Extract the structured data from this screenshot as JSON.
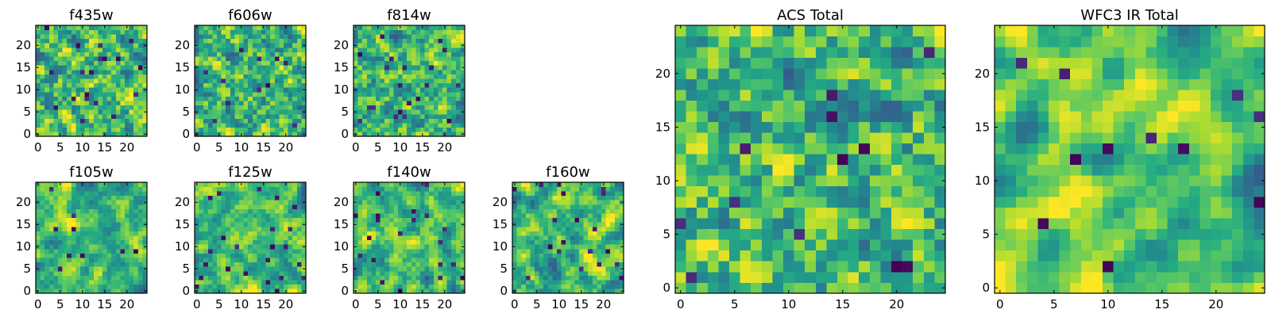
{
  "colors": {
    "colormap": "viridis",
    "low": "#440154",
    "mid": "#21908d",
    "high": "#fde725",
    "frame": "#000000",
    "background": "#ffffff"
  },
  "chart_data": [
    {
      "type": "heatmap",
      "title": "f435w",
      "grid_size": [
        25,
        25
      ],
      "xlim": [
        0,
        24
      ],
      "ylim": [
        0,
        24
      ],
      "xticks": [
        0,
        5,
        10,
        15,
        20
      ],
      "yticks": [
        0,
        5,
        10,
        15,
        20
      ],
      "origin": "lower",
      "colormap": "viridis",
      "seed": 11,
      "smoothness": 0.15
    },
    {
      "type": "heatmap",
      "title": "f606w",
      "grid_size": [
        25,
        25
      ],
      "xlim": [
        0,
        24
      ],
      "ylim": [
        0,
        24
      ],
      "xticks": [
        0,
        5,
        10,
        15,
        20
      ],
      "yticks": [
        0,
        5,
        10,
        15,
        20
      ],
      "origin": "lower",
      "colormap": "viridis",
      "seed": 23,
      "smoothness": 0.15
    },
    {
      "type": "heatmap",
      "title": "f814w",
      "grid_size": [
        25,
        25
      ],
      "xlim": [
        0,
        24
      ],
      "ylim": [
        0,
        24
      ],
      "xticks": [
        0,
        5,
        10,
        15,
        20
      ],
      "yticks": [
        0,
        5,
        10,
        15,
        20
      ],
      "origin": "lower",
      "colormap": "viridis",
      "seed": 37,
      "smoothness": 0.2
    },
    {
      "type": "heatmap",
      "title": "f105w",
      "grid_size": [
        25,
        25
      ],
      "xlim": [
        0,
        24
      ],
      "ylim": [
        0,
        24
      ],
      "xticks": [
        0,
        5,
        10,
        15,
        20
      ],
      "yticks": [
        0,
        5,
        10,
        15,
        20
      ],
      "origin": "lower",
      "colormap": "viridis",
      "seed": 41,
      "smoothness": 0.55
    },
    {
      "type": "heatmap",
      "title": "f125w",
      "grid_size": [
        25,
        25
      ],
      "xlim": [
        0,
        24
      ],
      "ylim": [
        0,
        24
      ],
      "xticks": [
        0,
        5,
        10,
        15,
        20
      ],
      "yticks": [
        0,
        5,
        10,
        15,
        20
      ],
      "origin": "lower",
      "colormap": "viridis",
      "seed": 53,
      "smoothness": 0.55
    },
    {
      "type": "heatmap",
      "title": "f140w",
      "grid_size": [
        25,
        25
      ],
      "xlim": [
        0,
        24
      ],
      "ylim": [
        0,
        24
      ],
      "xticks": [
        0,
        5,
        10,
        15,
        20
      ],
      "yticks": [
        0,
        5,
        10,
        15,
        20
      ],
      "origin": "lower",
      "colormap": "viridis",
      "seed": 67,
      "smoothness": 0.5
    },
    {
      "type": "heatmap",
      "title": "f160w",
      "grid_size": [
        25,
        25
      ],
      "xlim": [
        0,
        24
      ],
      "ylim": [
        0,
        24
      ],
      "xticks": [
        0,
        5,
        10,
        15,
        20
      ],
      "yticks": [
        0,
        5,
        10,
        15,
        20
      ],
      "origin": "lower",
      "colormap": "viridis",
      "seed": 79,
      "smoothness": 0.5
    },
    {
      "type": "heatmap",
      "title": "ACS Total",
      "grid_size": [
        25,
        25
      ],
      "xlim": [
        0,
        24
      ],
      "ylim": [
        0,
        24
      ],
      "xticks": [
        0,
        5,
        10,
        15,
        20
      ],
      "yticks": [
        0,
        5,
        10,
        15,
        20
      ],
      "origin": "lower",
      "colormap": "viridis",
      "seed": 97,
      "smoothness": 0.3
    },
    {
      "type": "heatmap",
      "title": "WFC3 IR Total",
      "grid_size": [
        25,
        25
      ],
      "xlim": [
        0,
        24
      ],
      "ylim": [
        0,
        24
      ],
      "xticks": [
        0,
        5,
        10,
        15,
        20
      ],
      "yticks": [
        0,
        5,
        10,
        15,
        20
      ],
      "origin": "lower",
      "colormap": "viridis",
      "seed": 113,
      "smoothness": 0.65
    }
  ]
}
